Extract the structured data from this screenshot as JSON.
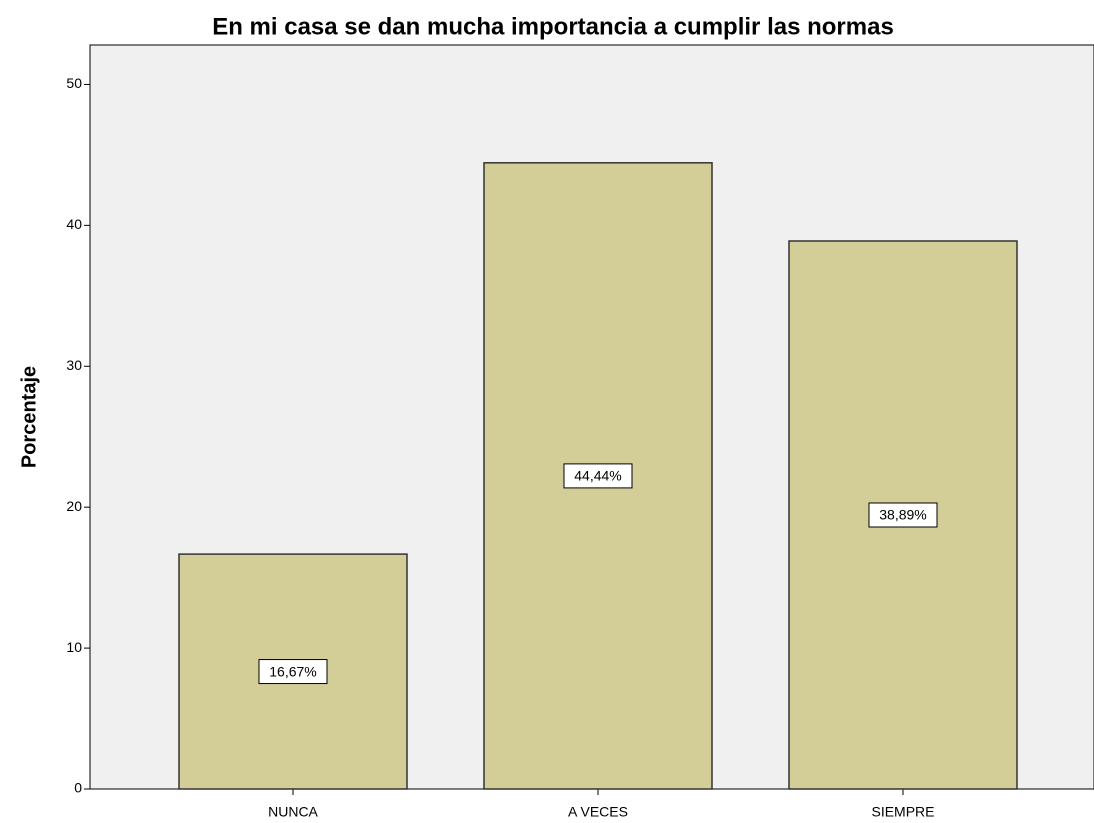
{
  "chart_data": {
    "type": "bar",
    "title": "En mi casa se dan mucha importancia a cumplir las normas",
    "y_label": "Porcentaje",
    "categories": [
      "NUNCA",
      "A VECES",
      "SIEMPRE"
    ],
    "values": [
      16.67,
      44.44,
      38.89
    ],
    "value_labels": [
      "16,67%",
      "44,44%",
      "38,89%"
    ],
    "color": "#d3ce97",
    "ylim": [
      0,
      52.8
    ],
    "yticks": [
      0,
      10,
      20,
      30,
      40,
      50
    ],
    "grid": false
  }
}
